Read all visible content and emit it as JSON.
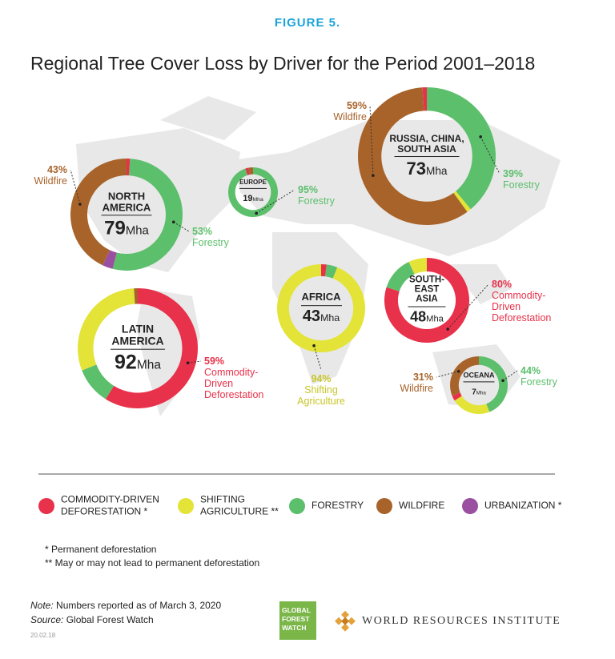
{
  "header": {
    "figure": "FIGURE 5.",
    "title": "Regional Tree Cover Loss by Driver for the Period 2001–2018"
  },
  "chart_data": [
    {
      "type": "pie",
      "donut": true,
      "title": "NORTH AMERICA",
      "total": 79,
      "unit": "Mha",
      "categories": [
        null,
        "Forestry",
        null,
        "Wildfire"
      ],
      "values": [
        1,
        53,
        3,
        43
      ],
      "value_labels": [
        null,
        "53%",
        null,
        "43%"
      ],
      "colors": [
        "#e8314a",
        "#5cbf6b",
        "#9b4fa0",
        "#a8632a"
      ]
    },
    {
      "type": "pie",
      "donut": true,
      "title": "EUROPE",
      "total": 19,
      "unit": "Mha",
      "categories": [
        "Forestry",
        null,
        null
      ],
      "values": [
        95,
        2,
        3
      ],
      "value_labels": [
        "95%",
        null,
        null
      ],
      "colors": [
        "#5cbf6b",
        "#e8314a",
        "#a8632a"
      ]
    },
    {
      "type": "pie",
      "donut": true,
      "title": "RUSSIA, CHINA, SOUTH ASIA",
      "total": 73,
      "unit": "Mha",
      "categories": [
        "Forestry",
        null,
        "Wildfire",
        null
      ],
      "values": [
        39,
        1,
        59,
        1
      ],
      "value_labels": [
        "39%",
        null,
        "59%",
        null
      ],
      "colors": [
        "#5cbf6b",
        "#e3e338",
        "#a8632a",
        "#e8314a"
      ]
    },
    {
      "type": "pie",
      "donut": true,
      "title": "LATIN AMERICA",
      "total": 92,
      "unit": "Mha",
      "categories": [
        "Commodity-Driven Deforestation",
        null,
        null,
        null
      ],
      "values": [
        59,
        10,
        30,
        1
      ],
      "value_labels": [
        "59%",
        null,
        null,
        null
      ],
      "colors": [
        "#e8314a",
        "#5cbf6b",
        "#e3e338",
        "#a8632a"
      ]
    },
    {
      "type": "pie",
      "donut": true,
      "title": "AFRICA",
      "total": 43,
      "unit": "Mha",
      "categories": [
        null,
        null,
        "Shifting Agriculture"
      ],
      "values": [
        2,
        4,
        94
      ],
      "value_labels": [
        null,
        null,
        "94%"
      ],
      "colors": [
        "#e8314a",
        "#5cbf6b",
        "#e3e338"
      ]
    },
    {
      "type": "pie",
      "donut": true,
      "title": "SOUTH-EAST ASIA",
      "total": 48,
      "unit": "Mha",
      "categories": [
        "Commodity-Driven Deforestation",
        null,
        null
      ],
      "values": [
        80,
        13,
        7
      ],
      "value_labels": [
        "80%",
        null,
        null
      ],
      "colors": [
        "#e8314a",
        "#5cbf6b",
        "#e3e338"
      ]
    },
    {
      "type": "pie",
      "donut": true,
      "title": "OCEANA",
      "total": 7,
      "unit": "Mha",
      "categories": [
        "Forestry",
        null,
        null,
        "Wildfire"
      ],
      "values": [
        44,
        22,
        3,
        31
      ],
      "value_labels": [
        "44%",
        null,
        null,
        "31%"
      ],
      "colors": [
        "#5cbf6b",
        "#e3e338",
        "#e8314a",
        "#a8632a"
      ]
    }
  ],
  "legend": [
    {
      "name": "COMMODITY-DRIVEN DEFORESTATION *",
      "color": "#e8314a"
    },
    {
      "name": "SHIFTING AGRICULTURE **",
      "color": "#e3e338"
    },
    {
      "name": "FORESTRY",
      "color": "#5cbf6b"
    },
    {
      "name": "WILDFIRE",
      "color": "#a8632a"
    },
    {
      "name": "URBANIZATION *",
      "color": "#9b4fa0"
    }
  ],
  "footnotes": [
    "* Permanent deforestation",
    "** May or may not lead to permanent deforestation"
  ],
  "note": {
    "label": "Note:",
    "text": "Numbers reported as of March 3, 2020"
  },
  "source": {
    "label": "Source:",
    "text": "Global Forest Watch"
  },
  "code": "20.02.18",
  "logos": {
    "gfw": "GLOBAL FOREST WATCH",
    "wri": "WORLD RESOURCES INSTITUTE"
  }
}
